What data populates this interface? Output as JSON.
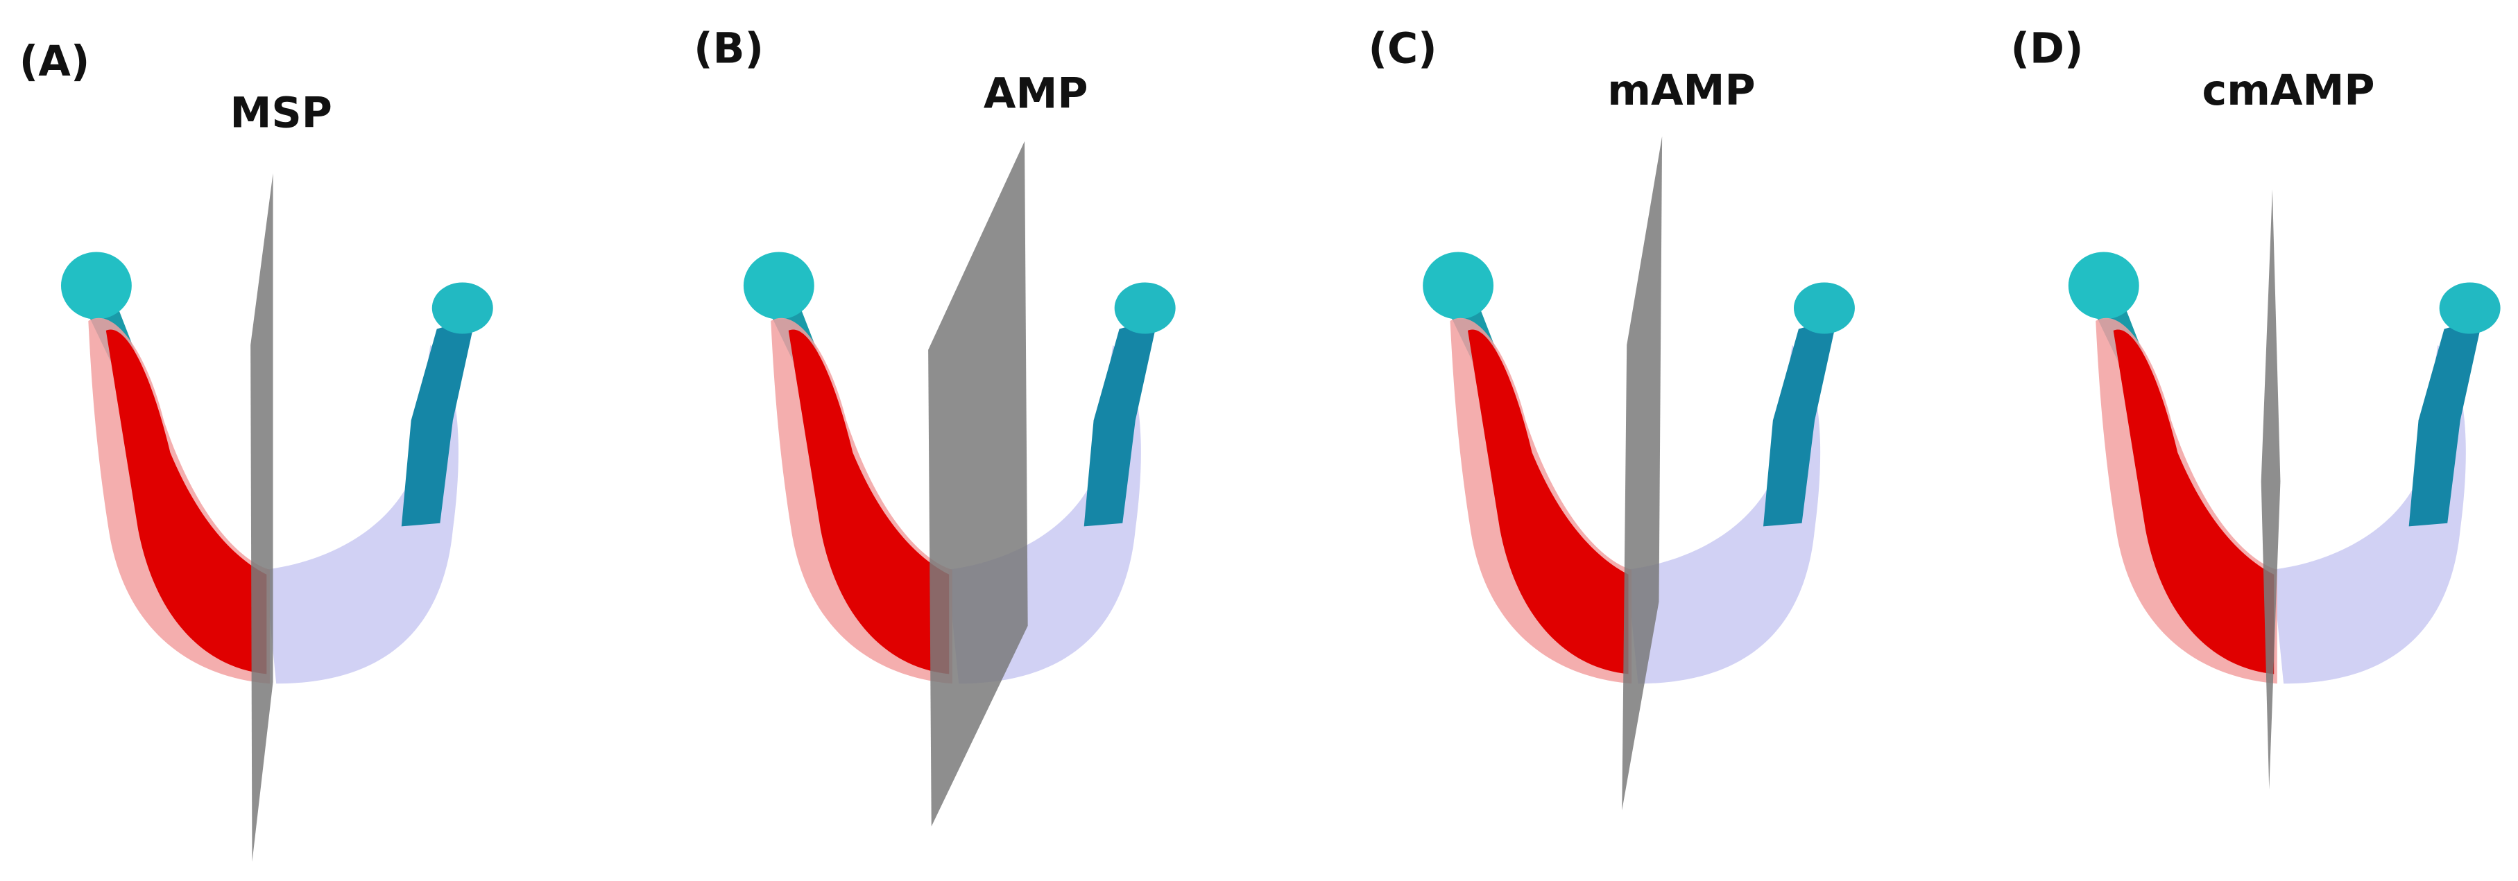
{
  "panels": [
    {
      "label": "(A)",
      "title": "MSP"
    },
    {
      "label": "(B)",
      "title": "AMP"
    },
    {
      "label": "(C)",
      "title": "mAMP"
    },
    {
      "label": "(D)",
      "title": "cmAMP"
    }
  ]
}
